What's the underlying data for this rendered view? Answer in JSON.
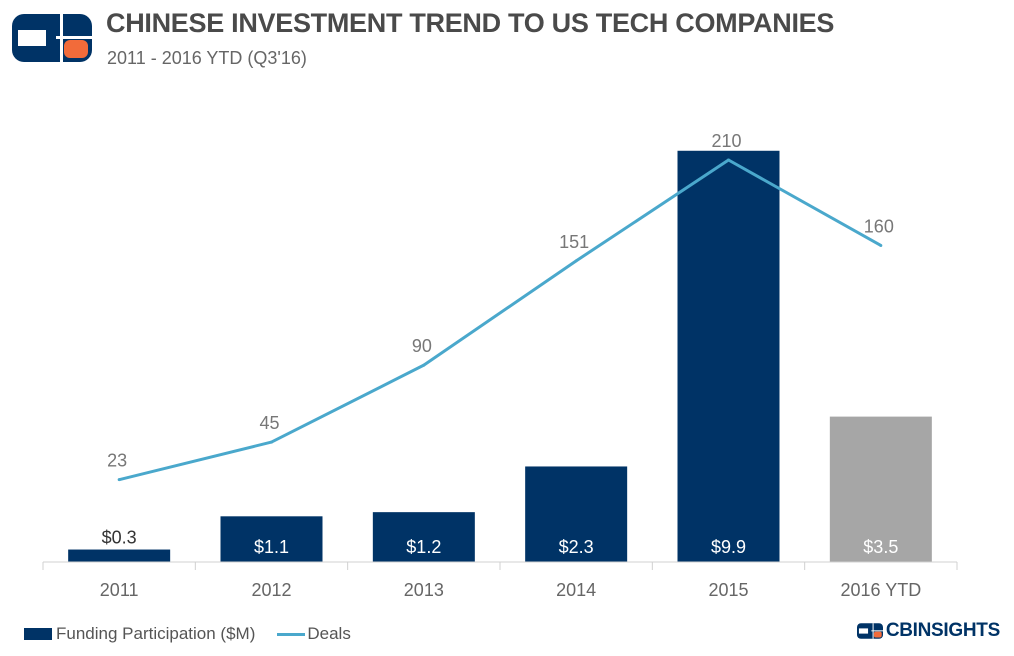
{
  "header": {
    "title": "CHINESE INVESTMENT TREND TO US TECH COMPANIES",
    "subtitle": "2011 - 2016 YTD (Q3'16)"
  },
  "brand": {
    "prefix": "CB",
    "name": "INSIGHTS",
    "colors": {
      "navy": "#003366",
      "orange": "#f26b3a",
      "gray": "#a6a6a6",
      "line": "#4aa8cc"
    }
  },
  "legend": {
    "bars": "Funding Participation ($M)",
    "line": "Deals"
  },
  "chart_data": {
    "type": "bar",
    "title": "CHINESE INVESTMENT TREND TO US TECH COMPANIES",
    "subtitle": "2011 - 2016 YTD (Q3'16)",
    "categories": [
      "2011",
      "2012",
      "2013",
      "2014",
      "2015",
      "2016 YTD"
    ],
    "series": [
      {
        "name": "Funding Participation ($M)",
        "kind": "bar",
        "values": [
          0.3,
          1.1,
          1.2,
          2.3,
          9.9,
          3.5
        ],
        "labels": [
          "$0.3",
          "$1.1",
          "$1.2",
          "$2.3",
          "$9.9",
          "$3.5"
        ],
        "colors": [
          "#003366",
          "#003366",
          "#003366",
          "#003366",
          "#003366",
          "#a6a6a6"
        ]
      },
      {
        "name": "Deals",
        "kind": "line",
        "values": [
          23,
          45,
          90,
          151,
          210,
          160
        ],
        "labels": [
          "23",
          "45",
          "90",
          "151",
          "210",
          "160"
        ],
        "color": "#4aa8cc"
      }
    ],
    "bar_axis_max": 10.4,
    "line_axis_max": 240,
    "xlabel": "",
    "ylabel": "",
    "grid": false,
    "legend_position": "bottom-left"
  }
}
